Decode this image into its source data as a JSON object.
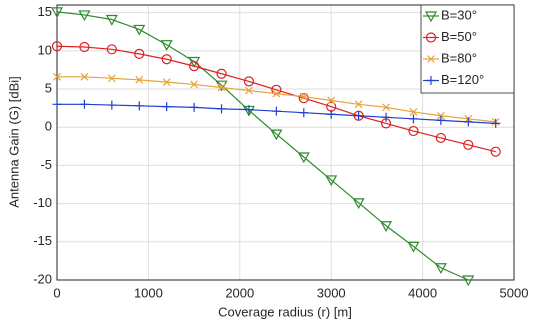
{
  "chart_data": {
    "type": "line",
    "x_label": "Coverage radius (r) [m]",
    "y_label": "Antenna Gain (G) [dBi]",
    "x": [
      0,
      300,
      600,
      900,
      1200,
      1500,
      1800,
      2100,
      2400,
      2700,
      3000,
      3300,
      3600,
      3900,
      4200,
      4500,
      4800
    ],
    "series": [
      {
        "name": "B=30°",
        "color": "#2e8b2e",
        "marker": "triangle-down",
        "values": [
          15.1,
          14.7,
          14.1,
          12.8,
          10.8,
          8.6,
          5.5,
          2.2,
          -0.9,
          -3.9,
          -6.9,
          -9.9,
          -12.9,
          -15.6,
          -18.4,
          -20,
          null
        ]
      },
      {
        "name": "B=50°",
        "color": "#e02020",
        "marker": "circle",
        "values": [
          10.6,
          10.5,
          10.2,
          9.6,
          8.9,
          8.0,
          7.0,
          6.0,
          4.9,
          3.8,
          2.7,
          1.5,
          0.5,
          -0.5,
          -1.4,
          -2.3,
          -3.2
        ]
      },
      {
        "name": "B=80°",
        "color": "#e8a33a",
        "marker": "x",
        "values": [
          6.6,
          6.6,
          6.4,
          6.2,
          5.9,
          5.6,
          5.2,
          4.8,
          4.4,
          4.0,
          3.5,
          3.0,
          2.6,
          2.0,
          1.5,
          1.1,
          0.7
        ]
      },
      {
        "name": "B=120°",
        "color": "#1f3fd0",
        "marker": "plus",
        "values": [
          3.0,
          3.0,
          2.9,
          2.8,
          2.7,
          2.6,
          2.4,
          2.3,
          2.1,
          1.9,
          1.7,
          1.5,
          1.3,
          1.1,
          0.9,
          0.7,
          0.5
        ]
      }
    ],
    "xlim": [
      0,
      5000
    ],
    "xticks": [
      0,
      1000,
      2000,
      3000,
      4000,
      5000
    ],
    "ylim": [
      -20,
      16
    ],
    "yticks": [
      -20,
      -15,
      -10,
      -5,
      0,
      5,
      10,
      15
    ],
    "grid": true,
    "legend": "top-right"
  }
}
